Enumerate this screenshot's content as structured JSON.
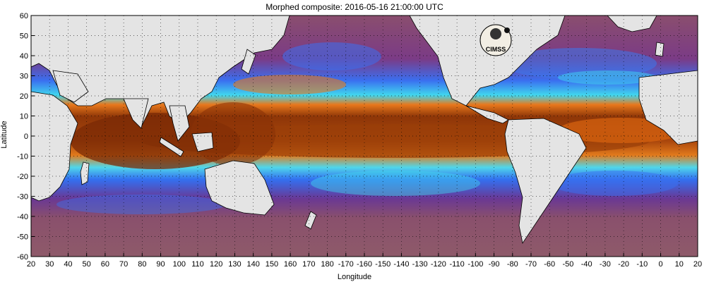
{
  "chart_data": {
    "type": "heatmap",
    "title": "Morphed composite: 2016-05-16 21:00:00 UTC",
    "xlabel": "Longitude",
    "ylabel": "Latitude",
    "x_ticks": [
      "20",
      "30",
      "40",
      "50",
      "60",
      "70",
      "80",
      "90",
      "100",
      "110",
      "120",
      "130",
      "140",
      "150",
      "160",
      "170",
      "180",
      "-170",
      "-160",
      "-150",
      "-140",
      "-130",
      "-120",
      "-110",
      "-100",
      "-90",
      "-80",
      "-70",
      "-60",
      "-50",
      "-40",
      "-30",
      "-20",
      "-10",
      "0",
      "10",
      "20"
    ],
    "y_ticks": [
      "60",
      "50",
      "40",
      "30",
      "20",
      "10",
      "0",
      "-10",
      "-20",
      "-30",
      "-40",
      "-50",
      "-60"
    ],
    "ylim": [
      -60,
      60
    ],
    "grid": true,
    "grid_style": "dotted",
    "logo_text": "CIMSS",
    "colors": {
      "land": "#e4e4e4",
      "ocean_dry": "#8a4e6e",
      "purple": "#6a2d8c",
      "blue": "#2f6ff2",
      "cyan": "#3fd7f0",
      "green": "#9ee86e",
      "yellow": "#f2d84a",
      "orange": "#e06a10",
      "dark_brown": "#7a2a05"
    }
  }
}
